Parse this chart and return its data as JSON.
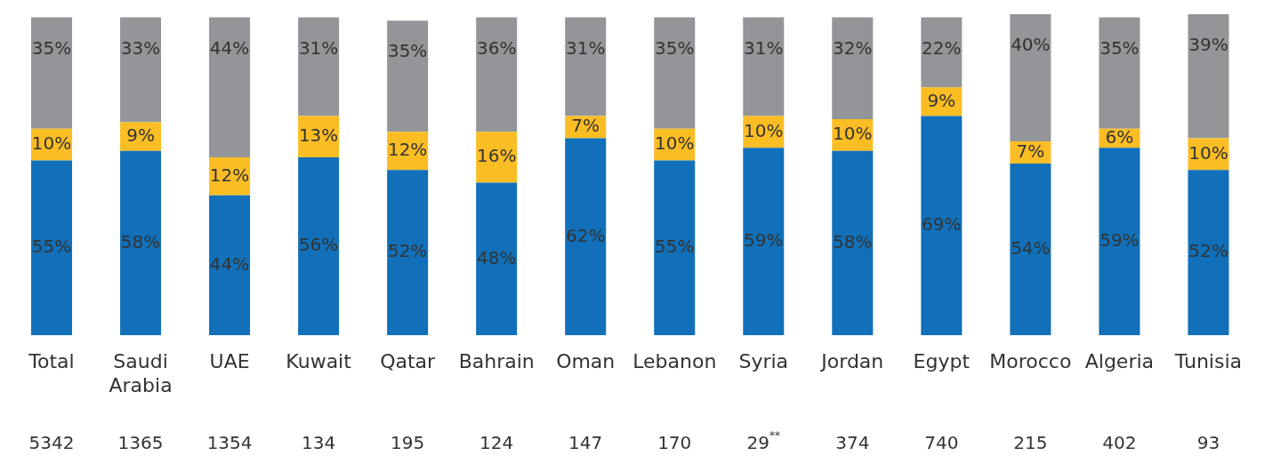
{
  "chart_data": {
    "type": "bar",
    "stacked": true,
    "grid": false,
    "legend": false,
    "categories": [
      "Total",
      "Saudi Arabia",
      "UAE",
      "Kuwait",
      "Qatar",
      "Bahrain",
      "Oman",
      "Lebanon",
      "Syria",
      "Jordan",
      "Egypt",
      "Morocco",
      "Algeria",
      "Tunisia"
    ],
    "series": [
      {
        "color": "#1170b9",
        "values": [
          55,
          58,
          44,
          56,
          52,
          48,
          62,
          55,
          59,
          58,
          69,
          54,
          59,
          52
        ],
        "value_labels": [
          "55%",
          "58%",
          "44%",
          "56%",
          "52%",
          "48%",
          "62%",
          "55%",
          "59%",
          "58%",
          "69%",
          "54%",
          "59%",
          "52%"
        ]
      },
      {
        "color": "#fbbd24",
        "values": [
          10,
          9,
          12,
          13,
          12,
          16,
          7,
          10,
          10,
          10,
          9,
          7,
          6,
          10
        ],
        "value_labels": [
          "10%",
          "9%",
          "12%",
          "13%",
          "12%",
          "16%",
          "7%",
          "10%",
          "10%",
          "10%",
          "9%",
          "7%",
          "6%",
          "10%"
        ]
      },
      {
        "color": "#939598",
        "values": [
          35,
          33,
          44,
          31,
          35,
          36,
          31,
          35,
          31,
          32,
          22,
          40,
          35,
          39
        ],
        "value_labels": [
          "35%",
          "33%",
          "44%",
          "31%",
          "35%",
          "36%",
          "31%",
          "35%",
          "31%",
          "32%",
          "22%",
          "40%",
          "35%",
          "39%"
        ]
      }
    ],
    "annotations": [
      "5342",
      "1365",
      "1354",
      "134",
      "195",
      "124",
      "147",
      "170",
      "29$^{**}$",
      "374",
      "740",
      "215",
      "402",
      "93"
    ]
  }
}
